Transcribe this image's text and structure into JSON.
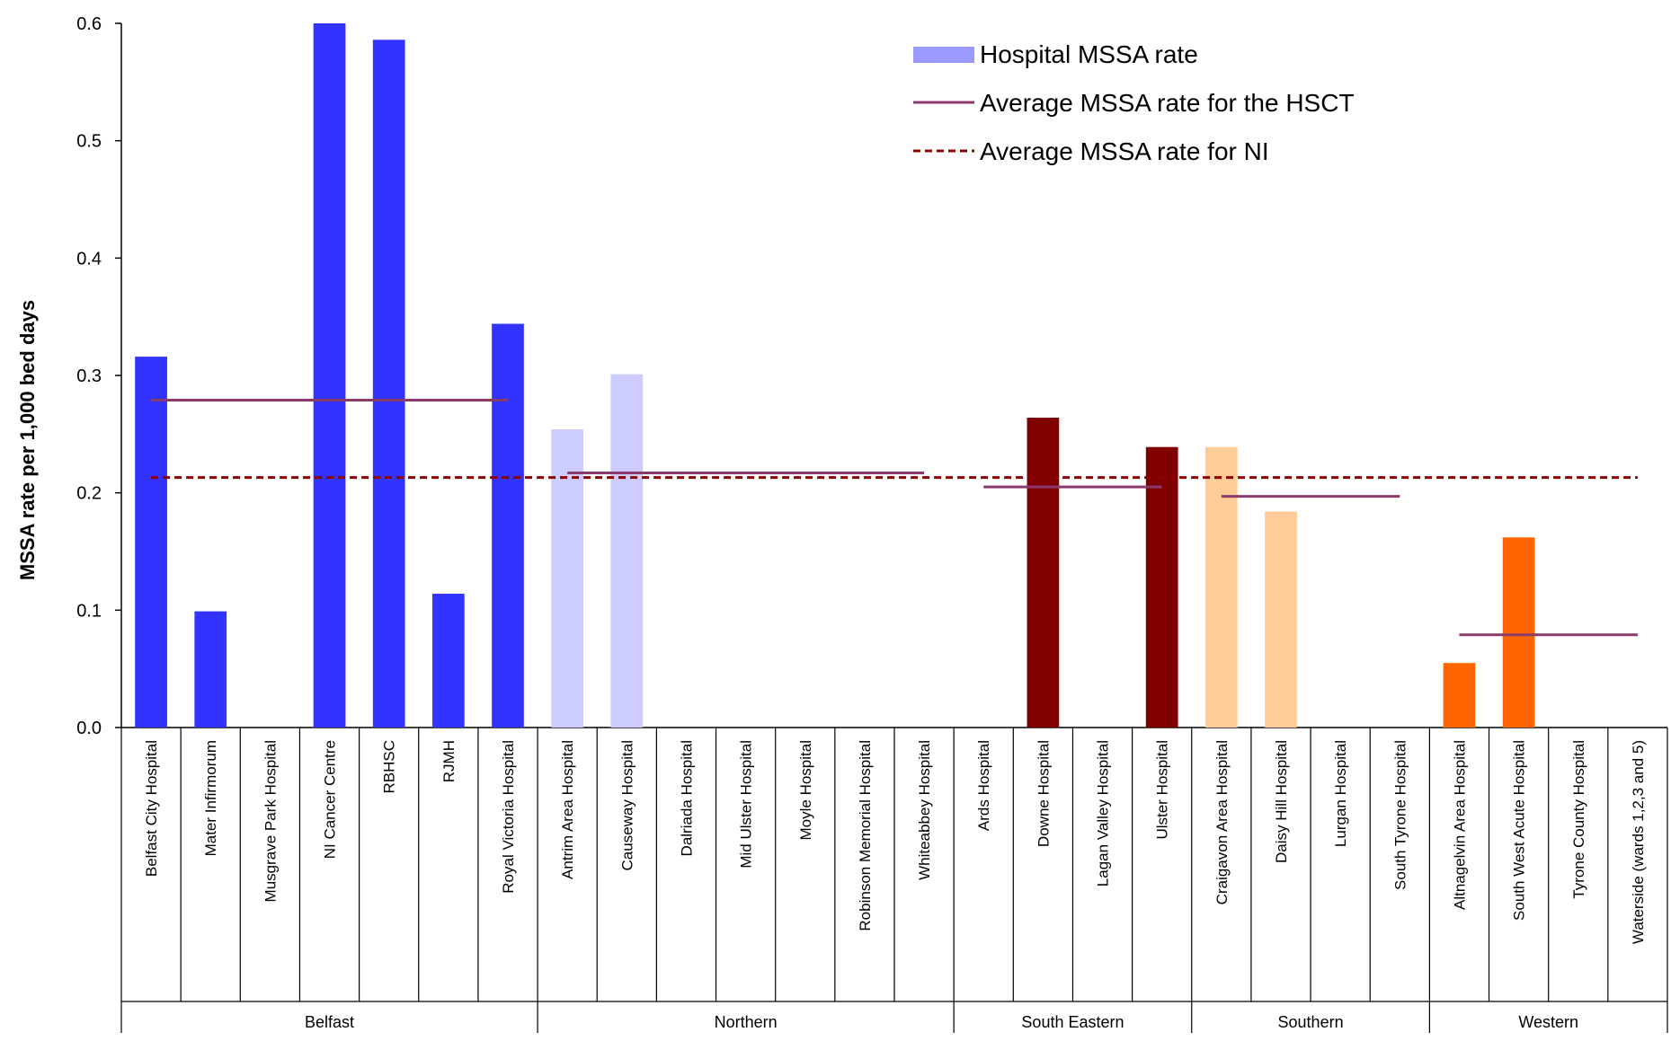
{
  "chart_data": {
    "type": "bar",
    "title": "",
    "ylabel": "MSSA rate per 1,000  bed days",
    "xlabel": "",
    "ylim": [
      0,
      0.6
    ],
    "yticks": [
      "0.0",
      "0.1",
      "0.2",
      "0.3",
      "0.4",
      "0.5",
      "0.6"
    ],
    "grid": false,
    "legend_position": "top-right",
    "legend": {
      "bar": "Hospital MSSA rate",
      "hsct": "Average MSSA rate for the HSCT",
      "ni": "Average MSSA rate for NI"
    },
    "ni_average": 0.213,
    "colors": {
      "hsct_line": "#8b3a6b",
      "ni_line": "#8b0000",
      "legend_bar": "#9999ff",
      "axis": "#000000"
    },
    "groups": [
      {
        "name": "Belfast",
        "color": "#3333ff",
        "hsct_average": 0.279,
        "hospitals": [
          {
            "name": "Belfast City Hospital",
            "value": 0.316
          },
          {
            "name": "Mater Infirmorum",
            "value": 0.099
          },
          {
            "name": "Musgrave Park Hospital",
            "value": 0
          },
          {
            "name": "NI Cancer Centre",
            "value": 0.6
          },
          {
            "name": "RBHSC",
            "value": 0.586
          },
          {
            "name": "RJMH",
            "value": 0.114
          },
          {
            "name": "Royal Victoria Hospital",
            "value": 0.344
          }
        ]
      },
      {
        "name": "Northern",
        "color": "#ccccff",
        "hsct_average": 0.217,
        "hospitals": [
          {
            "name": "Antrim  Area Hospital",
            "value": 0.254
          },
          {
            "name": "Causeway Hospital",
            "value": 0.301
          },
          {
            "name": "Dalriada Hospital",
            "value": 0
          },
          {
            "name": "Mid Ulster Hospital",
            "value": 0
          },
          {
            "name": "Moyle Hospital",
            "value": 0
          },
          {
            "name": "Robinson Memorial Hospital",
            "value": 0
          },
          {
            "name": "Whiteabbey Hospital",
            "value": 0
          }
        ]
      },
      {
        "name": "South Eastern",
        "color": "#800000",
        "hsct_average": 0.205,
        "hospitals": [
          {
            "name": "Ards Hospital",
            "value": 0
          },
          {
            "name": "Downe Hospital",
            "value": 0.264
          },
          {
            "name": "Lagan Valley Hospital",
            "value": 0
          },
          {
            "name": "Ulster Hospital",
            "value": 0.239
          }
        ]
      },
      {
        "name": "Southern",
        "color": "#ffcc99",
        "hsct_average": 0.197,
        "hospitals": [
          {
            "name": "Craigavon Area Hospital",
            "value": 0.239
          },
          {
            "name": "Daisy Hill Hospital",
            "value": 0.184
          },
          {
            "name": "Lurgan Hospital",
            "value": 0
          },
          {
            "name": "South Tyrone Hospital",
            "value": 0
          }
        ]
      },
      {
        "name": "Western",
        "color": "#ff6600",
        "hsct_average": 0.079,
        "hospitals": [
          {
            "name": "Altnagelvin Area Hospital",
            "value": 0.055
          },
          {
            "name": "South West Acute Hospital",
            "value": 0.162
          },
          {
            "name": "Tyrone County Hospital",
            "value": 0
          },
          {
            "name": "Waterside  (wards 1,2,3 and 5)",
            "value": 0
          }
        ]
      }
    ]
  }
}
